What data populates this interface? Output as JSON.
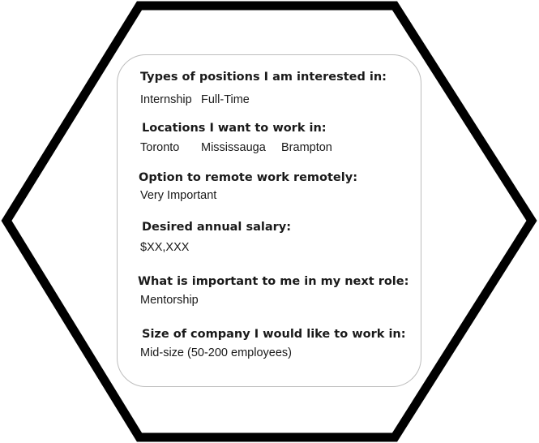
{
  "sections": [
    {
      "label": "Types of positions I am interested in:",
      "values": [
        "Internship",
        "Full-Time"
      ]
    },
    {
      "label": "Locations I want to work in:",
      "values": [
        "Toronto",
        "Mississauga",
        "Brampton"
      ]
    },
    {
      "label": "Option to remote work remotely:",
      "values": [
        "Very Important"
      ]
    },
    {
      "label": "Desired annual salary:",
      "values": [
        "$XX,XXX"
      ]
    },
    {
      "label": "What is important to me in my next role:",
      "values": [
        "Mentorship"
      ]
    },
    {
      "label": "Size of company I would like to work in:",
      "values": [
        "Mid-size (50-200 employees)"
      ]
    }
  ]
}
